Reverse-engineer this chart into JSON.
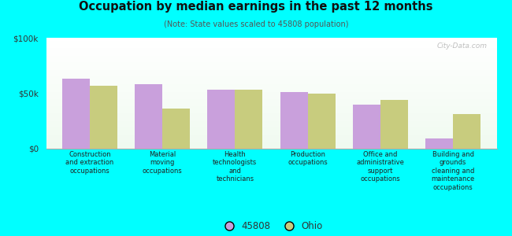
{
  "title": "Occupation by median earnings in the past 12 months",
  "subtitle": "(Note: State values scaled to 45808 population)",
  "categories": [
    "Construction\nand extraction\noccupations",
    "Material\nmoving\noccupations",
    "Health\ntechnologists\nand\ntechnicians",
    "Production\noccupations",
    "Office and\nadministrative\nsupport\noccupations",
    "Building and\ngrounds\ncleaning and\nmaintenance\noccupations"
  ],
  "values_45808": [
    63000,
    58000,
    53000,
    51000,
    40000,
    9000
  ],
  "values_ohio": [
    57000,
    36000,
    53000,
    50000,
    44000,
    31000
  ],
  "color_45808": "#c9a0dc",
  "color_ohio": "#c8cc7e",
  "ylim": [
    0,
    100000
  ],
  "yticks": [
    0,
    50000,
    100000
  ],
  "ytick_labels": [
    "$0",
    "$50k",
    "$100k"
  ],
  "background_color": "#00ffff",
  "watermark": "City-Data.com",
  "legend_labels": [
    "45808",
    "Ohio"
  ],
  "bar_width": 0.38
}
